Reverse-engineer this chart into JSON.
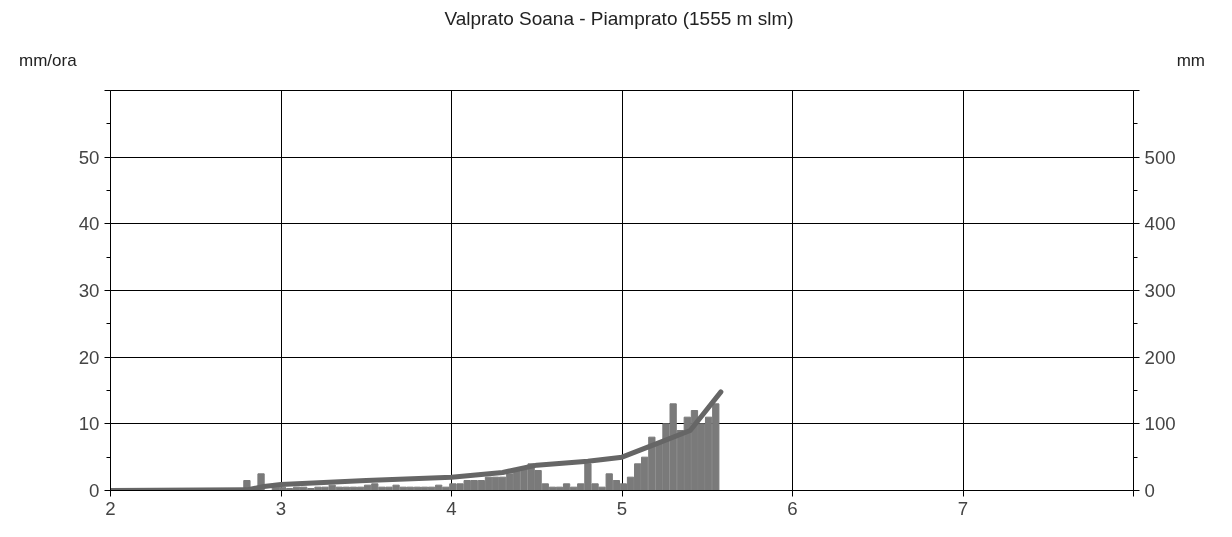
{
  "chart_data": {
    "type": "bar",
    "title": "Valprato Soana - Piamprato (1555 m slm)",
    "ylabel": "mm/ora",
    "y2label": "mm",
    "xlim": [
      2,
      8
    ],
    "xticks": [
      2,
      3,
      4,
      5,
      6,
      7,
      {
        "value": 8,
        "label": null
      }
    ],
    "ylim": [
      0,
      60
    ],
    "yticks": [
      0,
      10,
      20,
      30,
      40,
      50,
      {
        "value": 60,
        "label": null
      }
    ],
    "y2lim": [
      0,
      600
    ],
    "y2ticks": [
      0,
      100,
      200,
      300,
      400,
      500,
      {
        "value": 600,
        "label": null
      }
    ],
    "grid": true,
    "series": [
      {
        "type": "bar",
        "color": "#7a7a7a",
        "x": [
          2.8,
          2.842,
          2.883,
          2.925,
          2.967,
          3.008,
          3.05,
          3.092,
          3.133,
          3.175,
          3.217,
          3.258,
          3.3,
          3.342,
          3.383,
          3.425,
          3.467,
          3.508,
          3.55,
          3.592,
          3.633,
          3.675,
          3.717,
          3.758,
          3.8,
          3.842,
          3.883,
          3.925,
          3.967,
          4.008,
          4.05,
          4.092,
          4.133,
          4.175,
          4.217,
          4.258,
          4.3,
          4.342,
          4.383,
          4.425,
          4.467,
          4.508,
          4.55,
          4.592,
          4.633,
          4.675,
          4.717,
          4.758,
          4.8,
          4.842,
          4.883,
          4.925,
          4.967,
          5.008,
          5.05,
          5.092,
          5.133,
          5.175,
          5.217,
          5.258,
          5.3,
          5.342,
          5.383,
          5.425,
          5.467,
          5.508,
          5.55
        ],
        "values": [
          1.5,
          null,
          2.5,
          null,
          0.5,
          0.5,
          0.3,
          0.5,
          0.5,
          0.3,
          0.5,
          0.5,
          0.8,
          0.5,
          0.5,
          0.5,
          0.5,
          0.8,
          1.0,
          0.5,
          0.5,
          0.8,
          0.5,
          0.5,
          0.5,
          0.5,
          0.5,
          0.8,
          0.5,
          1,
          1,
          1.5,
          1.5,
          1.5,
          2,
          2,
          2,
          2.5,
          3,
          3.5,
          4,
          3,
          1,
          0.5,
          0.5,
          1,
          0.5,
          1,
          4,
          1,
          0.5,
          2.5,
          1.5,
          1,
          2,
          4,
          5,
          8,
          7,
          10,
          13,
          9,
          11,
          12,
          10,
          11,
          13
        ]
      },
      {
        "type": "line",
        "axis": "y2",
        "color": "#666666",
        "x": [
          2,
          2.8,
          2.9,
          3,
          3.5,
          4,
          4.3,
          4.5,
          4.8,
          5,
          5.2,
          5.4,
          5.58
        ],
        "values": [
          0,
          1,
          6,
          9,
          15,
          20,
          27,
          38,
          44,
          50,
          70,
          90,
          148
        ]
      }
    ]
  }
}
